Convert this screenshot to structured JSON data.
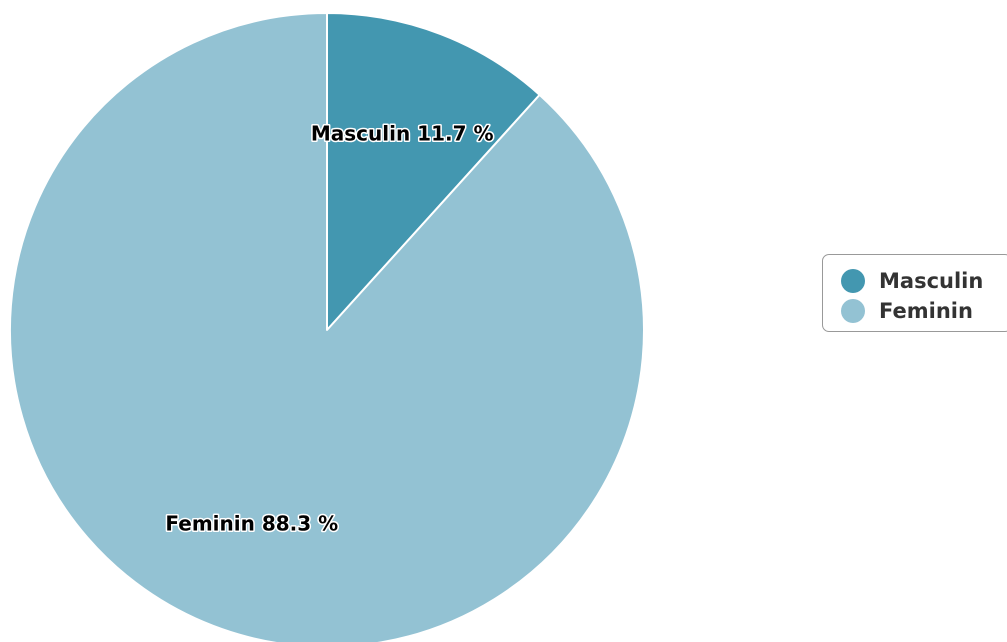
{
  "chart_data": {
    "type": "pie",
    "title": "",
    "unit": "%",
    "slices": [
      {
        "name": "Masculin",
        "value": 11.7,
        "label": "Masculin 11.7 %",
        "color": "#4397b0"
      },
      {
        "name": "Feminin",
        "value": 88.3,
        "label": "Feminin 88.3 %",
        "color": "#93c2d3"
      }
    ],
    "legend": {
      "position": "right",
      "items": [
        "Masculin",
        "Feminin"
      ]
    }
  }
}
